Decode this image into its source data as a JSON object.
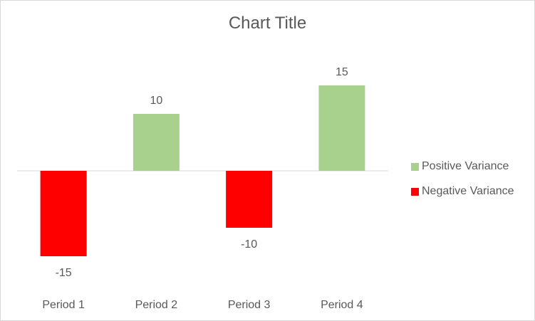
{
  "chart_data": {
    "type": "bar",
    "title": "Chart Title",
    "categories": [
      "Period 1",
      "Period 2",
      "Period 3",
      "Period 4"
    ],
    "series": [
      {
        "name": "Positive Variance",
        "color": "#a9d18e",
        "values": [
          null,
          10,
          null,
          15
        ]
      },
      {
        "name": "Negative Variance",
        "color": "#ff0000",
        "values": [
          -15,
          null,
          -10,
          null
        ]
      }
    ],
    "data_labels": [
      "-15",
      "10",
      "-10",
      "15"
    ],
    "xlabel": "",
    "ylabel": "",
    "ylim": [
      -15,
      15
    ],
    "grid": false,
    "legend_position": "right"
  }
}
